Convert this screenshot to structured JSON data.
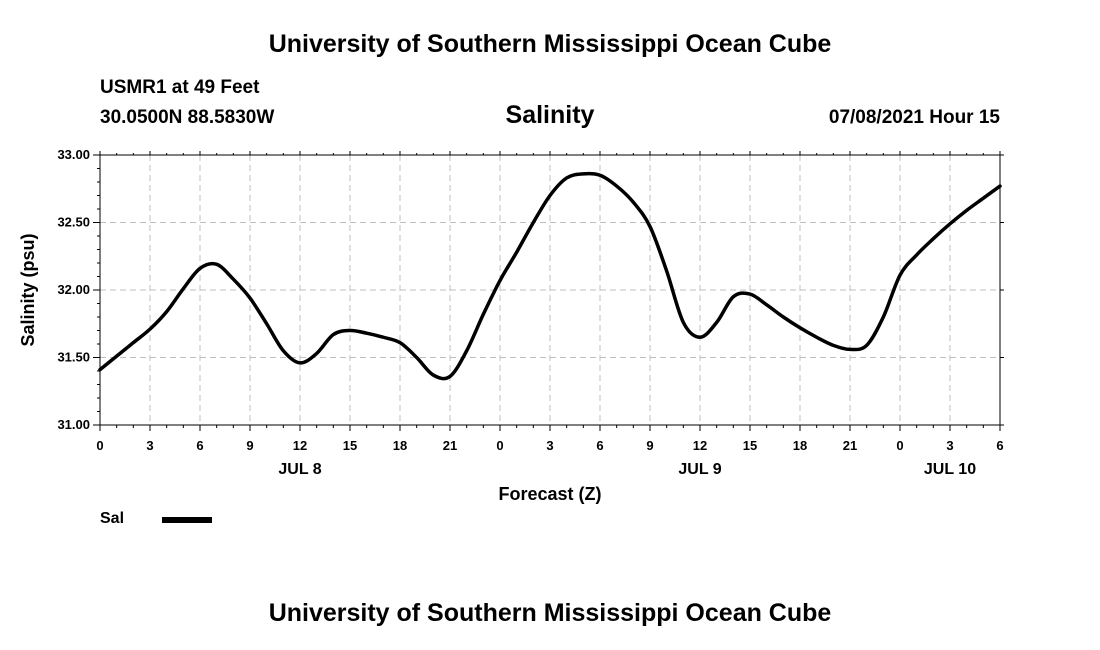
{
  "header": {
    "title": "University of Southern Mississippi Ocean Cube",
    "station": "USMR1 at 49 Feet",
    "coords": "30.0500N  88.5830W",
    "chart_title": "Salinity",
    "datetime": "07/08/2021 Hour 15"
  },
  "footer": {
    "title": "University of Southern Mississippi Ocean Cube"
  },
  "legend": {
    "label": "Sal"
  },
  "colors": {
    "line": "#000000",
    "grid": "#bfbfbf",
    "axis": "#000000"
  },
  "chart_data": {
    "type": "line",
    "title": "Salinity",
    "xlabel": "Forecast (Z)",
    "ylabel": "Salinity (psu)",
    "xlim": [
      0,
      54
    ],
    "ylim": [
      31.0,
      33.0
    ],
    "x_ticks": [
      0,
      3,
      6,
      9,
      12,
      15,
      18,
      21,
      24,
      27,
      30,
      33,
      36,
      39,
      42,
      45,
      48,
      51,
      54
    ],
    "x_tick_labels": [
      "0",
      "3",
      "6",
      "9",
      "12",
      "15",
      "18",
      "21",
      "0",
      "3",
      "6",
      "9",
      "12",
      "15",
      "18",
      "21",
      "0",
      "3",
      "6"
    ],
    "day_labels": [
      {
        "x": 12,
        "label": "JUL 8"
      },
      {
        "x": 36,
        "label": "JUL 9"
      },
      {
        "x": 51,
        "label": "JUL 10"
      }
    ],
    "y_ticks": [
      31.0,
      31.5,
      32.0,
      32.5,
      33.0
    ],
    "y_tick_labels": [
      "31.00",
      "31.50",
      "32.00",
      "32.50",
      "33.00"
    ],
    "grid": true,
    "legend_position": "bottom-left",
    "series": [
      {
        "name": "Sal",
        "x": [
          0,
          1,
          2,
          3,
          4,
          5,
          6,
          7,
          8,
          9,
          10,
          11,
          12,
          13,
          14,
          15,
          16,
          17,
          18,
          19,
          20,
          21,
          22,
          23,
          24,
          25,
          26,
          27,
          28,
          29,
          30,
          31,
          32,
          33,
          34,
          35,
          36,
          37,
          38,
          39,
          40,
          41,
          42,
          43,
          44,
          45,
          46,
          47,
          48,
          49,
          50,
          51,
          52,
          53,
          54
        ],
        "values": [
          31.41,
          31.51,
          31.61,
          31.71,
          31.84,
          32.01,
          32.16,
          32.19,
          32.08,
          31.94,
          31.75,
          31.55,
          31.46,
          31.53,
          31.67,
          31.7,
          31.68,
          31.65,
          31.61,
          31.5,
          31.37,
          31.36,
          31.55,
          31.82,
          32.07,
          32.28,
          32.5,
          32.7,
          32.83,
          32.86,
          32.85,
          32.77,
          32.65,
          32.47,
          32.14,
          31.76,
          31.65,
          31.76,
          31.95,
          31.97,
          31.89,
          31.8,
          31.72,
          31.65,
          31.59,
          31.56,
          31.59,
          31.8,
          32.11,
          32.26,
          32.38,
          32.49,
          32.59,
          32.68,
          32.77
        ]
      }
    ]
  }
}
